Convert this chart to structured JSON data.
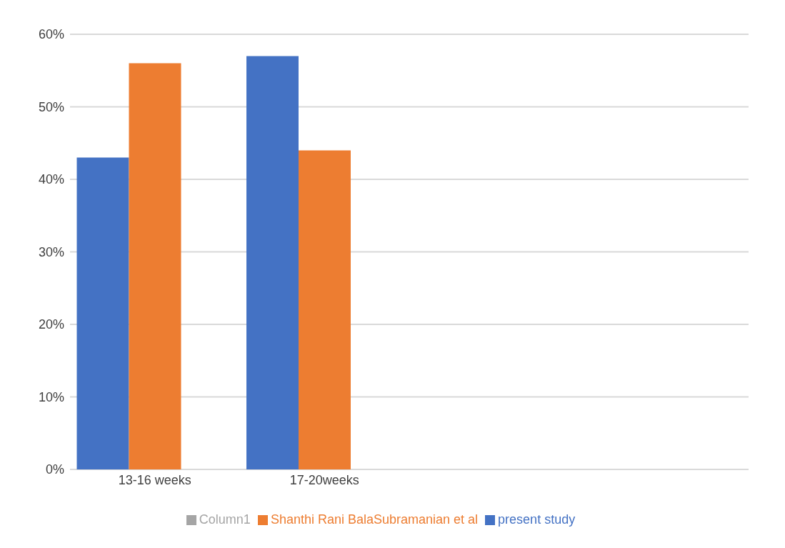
{
  "chart_data": {
    "type": "bar",
    "categories": [
      "13-16 weeks",
      "17-20weeks",
      null,
      null
    ],
    "series": [
      {
        "name": "present study",
        "color": "#4472c4",
        "values": [
          43,
          57,
          null,
          null
        ]
      },
      {
        "name": "Shanthi Rani BalaSubramanian et al",
        "color": "#ed7d31",
        "values": [
          56,
          44,
          null,
          null
        ]
      },
      {
        "name": "Column1",
        "color": "#a5a5a5",
        "values": [
          null,
          null,
          null,
          null
        ]
      }
    ],
    "ylim": [
      0,
      60
    ],
    "yticks": [
      {
        "value": 0,
        "label": "0%"
      },
      {
        "value": 10,
        "label": "10%"
      },
      {
        "value": 20,
        "label": "20%"
      },
      {
        "value": 30,
        "label": "30%"
      },
      {
        "value": 40,
        "label": "40%"
      },
      {
        "value": 50,
        "label": "50%"
      },
      {
        "value": 60,
        "label": "60%"
      }
    ],
    "grid": "y",
    "legend": "bottom"
  }
}
